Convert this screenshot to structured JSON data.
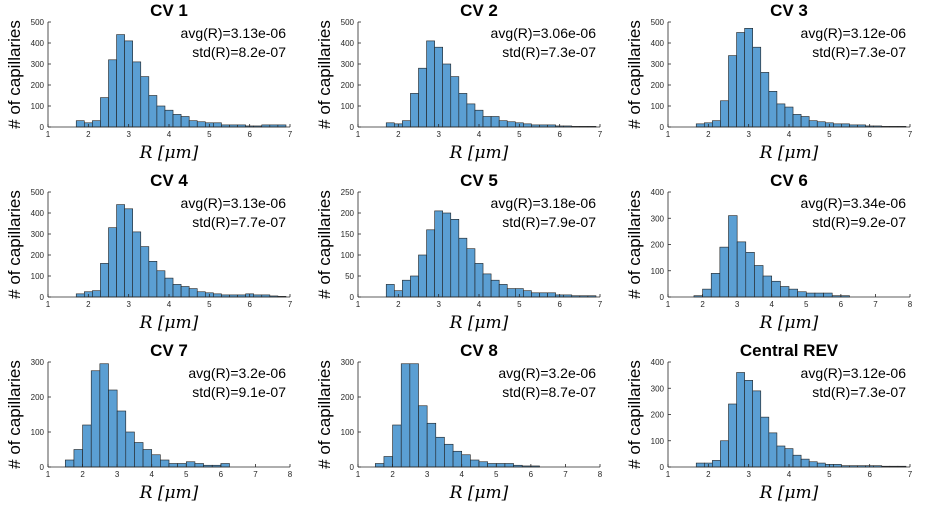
{
  "chart_data": [
    {
      "type": "bar",
      "title": "CV 1",
      "annotations": [
        "avg(R)=3.13e-06",
        "std(R)=8.2e-07"
      ],
      "xlabel": "R [μm]",
      "ylabel": "# of capillaries",
      "xlim": [
        1,
        7
      ],
      "ylim": [
        0,
        500
      ],
      "xticks": [
        1,
        2,
        3,
        4,
        5,
        6,
        7
      ],
      "yticks": [
        0,
        100,
        200,
        300,
        400,
        500
      ],
      "bin_start": 1.5,
      "bin_width": 0.2,
      "values": [
        0,
        30,
        20,
        30,
        140,
        320,
        440,
        410,
        310,
        240,
        150,
        100,
        80,
        60,
        50,
        30,
        25,
        20,
        20,
        10,
        10,
        10,
        5,
        5,
        10,
        10,
        10
      ]
    },
    {
      "type": "bar",
      "title": "CV 2",
      "annotations": [
        "avg(R)=3.06e-06",
        "std(R)=7.3e-07"
      ],
      "xlabel": "R [μm]",
      "ylabel": "# of capillaries",
      "xlim": [
        1,
        7
      ],
      "ylim": [
        0,
        500
      ],
      "xticks": [
        1,
        2,
        3,
        4,
        5,
        6,
        7
      ],
      "yticks": [
        0,
        100,
        200,
        300,
        400,
        500
      ],
      "bin_start": 1.5,
      "bin_width": 0.2,
      "values": [
        0,
        20,
        15,
        30,
        160,
        280,
        410,
        380,
        300,
        240,
        160,
        110,
        80,
        50,
        50,
        30,
        25,
        20,
        15,
        10,
        10,
        10,
        5,
        5,
        3,
        3,
        3
      ]
    },
    {
      "type": "bar",
      "title": "CV 3",
      "annotations": [
        "avg(R)=3.12e-06",
        "std(R)=7.3e-07"
      ],
      "xlabel": "R [μm]",
      "ylabel": "# of capillaries",
      "xlim": [
        1,
        7
      ],
      "ylim": [
        0,
        500
      ],
      "xticks": [
        1,
        2,
        3,
        4,
        5,
        6,
        7
      ],
      "yticks": [
        0,
        100,
        200,
        300,
        400,
        500
      ],
      "bin_start": 1.5,
      "bin_width": 0.2,
      "values": [
        0,
        15,
        20,
        30,
        125,
        340,
        450,
        470,
        380,
        260,
        170,
        110,
        95,
        60,
        50,
        30,
        25,
        20,
        15,
        15,
        10,
        10,
        5,
        5,
        3,
        3,
        3
      ]
    },
    {
      "type": "bar",
      "title": "CV 4",
      "annotations": [
        "avg(R)=3.13e-06",
        "std(R)=7.7e-07"
      ],
      "xlabel": "R [μm]",
      "ylabel": "# of capillaries",
      "xlim": [
        1,
        7
      ],
      "ylim": [
        0,
        500
      ],
      "xticks": [
        1,
        2,
        3,
        4,
        5,
        6,
        7
      ],
      "yticks": [
        0,
        100,
        200,
        300,
        400,
        500
      ],
      "bin_start": 1.5,
      "bin_width": 0.2,
      "values": [
        0,
        15,
        25,
        30,
        160,
        330,
        440,
        420,
        310,
        240,
        170,
        125,
        90,
        60,
        50,
        40,
        25,
        20,
        15,
        10,
        10,
        10,
        15,
        10,
        10,
        5,
        3
      ]
    },
    {
      "type": "bar",
      "title": "CV 5",
      "annotations": [
        "avg(R)=3.18e-06",
        "std(R)=7.9e-07"
      ],
      "xlabel": "R [μm]",
      "ylabel": "# of capillaries",
      "xlim": [
        1,
        7
      ],
      "ylim": [
        0,
        250
      ],
      "xticks": [
        1,
        2,
        3,
        4,
        5,
        6,
        7
      ],
      "yticks": [
        0,
        50,
        100,
        150,
        200,
        250
      ],
      "bin_start": 1.5,
      "bin_width": 0.2,
      "values": [
        0,
        30,
        15,
        40,
        50,
        100,
        160,
        205,
        200,
        185,
        140,
        115,
        80,
        55,
        40,
        30,
        20,
        20,
        15,
        10,
        10,
        10,
        5,
        5,
        3,
        3,
        3
      ]
    },
    {
      "type": "bar",
      "title": "CV 6",
      "annotations": [
        "avg(R)=3.34e-06",
        "std(R)=9.2e-07"
      ],
      "xlabel": "R [μm]",
      "ylabel": "# of capillaries",
      "xlim": [
        1,
        8
      ],
      "ylim": [
        0,
        400
      ],
      "xticks": [
        1,
        2,
        3,
        4,
        5,
        6,
        7,
        8
      ],
      "yticks": [
        0,
        100,
        200,
        300,
        400
      ],
      "bin_start": 1.5,
      "bin_width": 0.25,
      "values": [
        0,
        5,
        30,
        90,
        190,
        310,
        210,
        170,
        120,
        80,
        60,
        40,
        30,
        20,
        15,
        15,
        15,
        5,
        5
      ]
    },
    {
      "type": "bar",
      "title": "CV 7",
      "annotations": [
        "avg(R)=3.2e-06",
        "std(R)=9.1e-07"
      ],
      "xlabel": "R [μm]",
      "ylabel": "# of capillaries",
      "xlim": [
        1,
        8
      ],
      "ylim": [
        0,
        300
      ],
      "xticks": [
        1,
        2,
        3,
        4,
        5,
        6,
        7,
        8
      ],
      "yticks": [
        0,
        100,
        200,
        300
      ],
      "bin_start": 1.5,
      "bin_width": 0.25,
      "values": [
        20,
        50,
        120,
        275,
        295,
        220,
        160,
        100,
        70,
        50,
        35,
        20,
        10,
        10,
        15,
        10,
        5,
        5,
        10
      ]
    },
    {
      "type": "bar",
      "title": "CV 8",
      "annotations": [
        "avg(R)=3.2e-06",
        "std(R)=8.7e-07"
      ],
      "xlabel": "R [μm]",
      "ylabel": "# of capillaries",
      "xlim": [
        1,
        8
      ],
      "ylim": [
        0,
        300
      ],
      "xticks": [
        1,
        2,
        3,
        4,
        5,
        6,
        7,
        8
      ],
      "yticks": [
        0,
        100,
        200,
        300
      ],
      "bin_start": 1.5,
      "bin_width": 0.25,
      "values": [
        10,
        30,
        120,
        295,
        295,
        175,
        125,
        85,
        65,
        45,
        35,
        20,
        15,
        10,
        10,
        10,
        5,
        3,
        3
      ]
    },
    {
      "type": "bar",
      "title": "Central REV",
      "annotations": [
        "avg(R)=3.12e-06",
        "std(R)=7.3e-07"
      ],
      "xlabel": "R [μm]",
      "ylabel": "# of capillaries",
      "xlim": [
        1,
        7
      ],
      "ylim": [
        0,
        400
      ],
      "xticks": [
        1,
        2,
        3,
        4,
        5,
        6,
        7
      ],
      "yticks": [
        0,
        100,
        200,
        300,
        400
      ],
      "bin_start": 1.5,
      "bin_width": 0.2,
      "values": [
        0,
        15,
        15,
        25,
        100,
        240,
        360,
        330,
        290,
        190,
        130,
        80,
        70,
        45,
        30,
        20,
        15,
        10,
        10,
        5,
        5,
        5,
        5,
        5,
        3,
        3,
        3
      ]
    }
  ]
}
